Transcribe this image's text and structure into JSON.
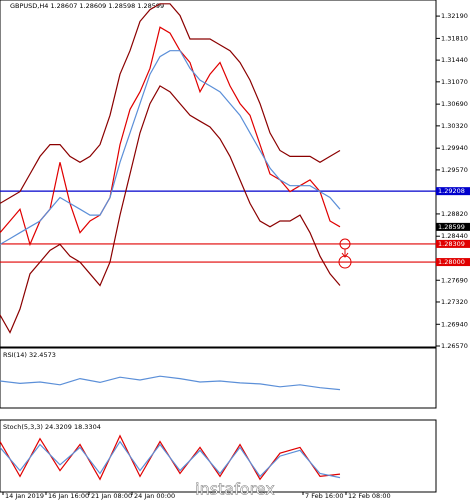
{
  "title": "GBPUSD,H4  1.28607 1.28609 1.28598 1.28599",
  "watermark": "instaforex",
  "chart_data": [
    {
      "type": "line",
      "xlim": [
        0,
        43.6
      ],
      "ylim": [
        1.2657,
        1.3243
      ],
      "yticks": [
        {
          "value": 1.3219,
          "label": "1.32190"
        },
        {
          "value": 1.3181,
          "label": "1.31810"
        },
        {
          "value": 1.3144,
          "label": "1.31440"
        },
        {
          "value": 1.3107,
          "label": "1.31070"
        },
        {
          "value": 1.3069,
          "label": "1.30690"
        },
        {
          "value": 1.3032,
          "label": "1.30320"
        },
        {
          "value": 1.2994,
          "label": "1.29940"
        },
        {
          "value": 1.2957,
          "label": "1.29570"
        },
        {
          "value": 1.2882,
          "label": "1.28820"
        },
        {
          "value": 1.2844,
          "label": "1.28440"
        },
        {
          "value": 1.2769,
          "label": "1.27690"
        },
        {
          "value": 1.2732,
          "label": "1.27320"
        },
        {
          "value": 1.2694,
          "label": "1.26940"
        },
        {
          "value": 1.2657,
          "label": "1.26570"
        }
      ],
      "levels": [
        {
          "value": 1.29208,
          "label": "1.29208",
          "color": "#0000cc"
        },
        {
          "value": 1.28309,
          "label": "1.28309",
          "color": "#e00000"
        },
        {
          "value": 1.28,
          "label": "1.28000",
          "color": "#e00000"
        }
      ],
      "last_price": {
        "value": 1.28599,
        "label": "1.28599"
      },
      "xticks": [
        {
          "value": 0.3,
          "label": "14 Jan 2019"
        },
        {
          "value": 4.6,
          "label": "16 Jan 16:00"
        },
        {
          "value": 8.9,
          "label": "21 Jan 08:00"
        },
        {
          "value": 13.2,
          "label": "24 Jan 00:00"
        },
        {
          "value": 30.3,
          "label": "7 Feb 16:00"
        },
        {
          "value": 34.6,
          "label": "12 Feb 08:00"
        }
      ],
      "x": [
        0,
        1,
        2,
        3,
        4,
        5,
        6,
        7,
        8,
        9,
        10,
        11,
        12,
        13,
        14,
        15,
        16,
        17,
        18,
        19,
        20,
        21,
        22,
        23,
        24,
        25,
        26,
        27,
        28,
        29,
        30,
        31,
        32,
        33,
        34
      ],
      "series": [
        {
          "name": "close",
          "color": "#e00000",
          "values": [
            1.285,
            1.287,
            1.289,
            1.283,
            1.287,
            1.289,
            1.297,
            1.29,
            1.285,
            1.287,
            1.288,
            1.291,
            1.3,
            1.306,
            1.309,
            1.313,
            1.32,
            1.319,
            1.316,
            1.314,
            1.309,
            1.312,
            1.314,
            1.31,
            1.307,
            1.305,
            1.3,
            1.295,
            1.294,
            1.292,
            1.293,
            1.294,
            1.292,
            1.287,
            1.286
          ]
        },
        {
          "name": "upper",
          "color": "#8b0000",
          "values": [
            1.29,
            1.291,
            1.292,
            1.295,
            1.298,
            1.3,
            1.3,
            1.298,
            1.297,
            1.298,
            1.3,
            1.305,
            1.312,
            1.316,
            1.321,
            1.323,
            1.324,
            1.324,
            1.322,
            1.318,
            1.318,
            1.318,
            1.317,
            1.316,
            1.314,
            1.311,
            1.307,
            1.302,
            1.299,
            1.298,
            1.298,
            1.298,
            1.297,
            1.298,
            1.299
          ]
        },
        {
          "name": "lower",
          "color": "#8b0000",
          "values": [
            1.271,
            1.268,
            1.272,
            1.278,
            1.28,
            1.282,
            1.283,
            1.281,
            1.28,
            1.278,
            1.276,
            1.28,
            1.288,
            1.295,
            1.302,
            1.307,
            1.31,
            1.309,
            1.307,
            1.305,
            1.304,
            1.303,
            1.301,
            1.298,
            1.294,
            1.29,
            1.287,
            1.286,
            1.287,
            1.287,
            1.288,
            1.285,
            1.281,
            1.278,
            1.276
          ]
        },
        {
          "name": "middle",
          "color": "#5b8fd8",
          "values": [
            1.283,
            1.284,
            1.285,
            1.286,
            1.287,
            1.289,
            1.291,
            1.29,
            1.289,
            1.288,
            1.288,
            1.291,
            1.297,
            1.302,
            1.307,
            1.312,
            1.315,
            1.316,
            1.316,
            1.313,
            1.311,
            1.31,
            1.309,
            1.307,
            1.305,
            1.302,
            1.299,
            1.296,
            1.294,
            1.293,
            1.293,
            1.293,
            1.292,
            1.291,
            1.289
          ]
        }
      ]
    },
    {
      "type": "line",
      "label": "RSI(14) 32.4573",
      "xlim": [
        0,
        43.6
      ],
      "ylim": [
        0,
        100
      ],
      "x": [
        0,
        2,
        4,
        6,
        8,
        10,
        12,
        14,
        16,
        18,
        20,
        22,
        24,
        26,
        28,
        30,
        32,
        34
      ],
      "series": [
        {
          "name": "rsi",
          "color": "#5b8fd8",
          "values": [
            50,
            45,
            48,
            42,
            55,
            47,
            58,
            52,
            60,
            55,
            48,
            50,
            46,
            44,
            38,
            42,
            36,
            32
          ]
        }
      ]
    },
    {
      "type": "line",
      "label": "Stoch(5,3,3) 24.3209 18.3304",
      "xlim": [
        0,
        43.6
      ],
      "ylim": [
        0,
        100
      ],
      "x": [
        0,
        2,
        4,
        6,
        8,
        10,
        12,
        14,
        16,
        18,
        20,
        22,
        24,
        26,
        28,
        30,
        32,
        34
      ],
      "series": [
        {
          "name": "main",
          "color": "#e00000",
          "values": [
            80,
            20,
            85,
            30,
            75,
            15,
            90,
            20,
            80,
            25,
            70,
            20,
            75,
            15,
            60,
            70,
            20,
            24
          ]
        },
        {
          "name": "signal",
          "color": "#5b8fd8",
          "values": [
            70,
            30,
            75,
            40,
            70,
            25,
            80,
            30,
            75,
            30,
            65,
            25,
            70,
            20,
            55,
            65,
            25,
            18
          ]
        }
      ]
    }
  ]
}
